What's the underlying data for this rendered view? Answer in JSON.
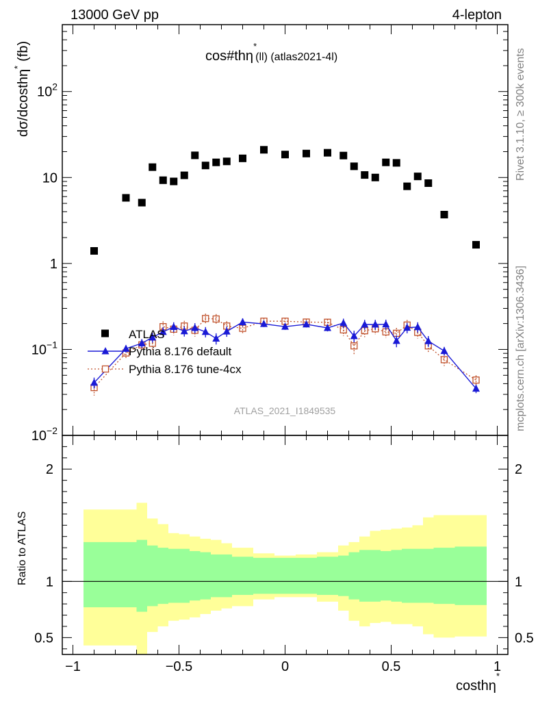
{
  "header": {
    "left": "13000 GeV pp",
    "right": "4-lepton"
  },
  "side_text": {
    "rivet": "Rivet 3.1.10, ≥ 300k events",
    "mcplots": "mcplots.cern.ch [arXiv:1306.3436]"
  },
  "chart_data": {
    "type": "scatter",
    "title": "cos#thη* (ll) (atlas2021-4l)",
    "title_main": "cos#thη",
    "title_sup": "*",
    "title_sub": "(ll) (atlas2021-4l)",
    "ylabel_main": "dσ/dcosthη",
    "ylabel_sup": "*",
    "ylabel_unit": "(fb)",
    "xlabel_main": "costhη",
    "xlabel_sup": "*",
    "ratio_ylabel": "Ratio to ATLAS",
    "watermark": "ATLAS_2021_I1849535",
    "log_y": true,
    "xlim": [
      -1.05,
      1.05
    ],
    "ylim": [
      0.01,
      600
    ],
    "ratio_ylim": [
      0.35,
      2.3
    ],
    "x_ticks": [
      {
        "v": -1,
        "label": "−1"
      },
      {
        "v": -0.5,
        "label": "−0.5"
      },
      {
        "v": 0,
        "label": "0"
      },
      {
        "v": 0.5,
        "label": "0.5"
      },
      {
        "v": 1,
        "label": "1"
      }
    ],
    "y_ticks": [
      {
        "v": 100,
        "base": "10",
        "exp": "2"
      },
      {
        "v": 10,
        "base": "10",
        "exp": ""
      },
      {
        "v": 1,
        "base": "1",
        "exp": ""
      },
      {
        "v": 0.1,
        "base": "10",
        "exp": "−1"
      },
      {
        "v": 0.01,
        "base": "10",
        "exp": "−2"
      }
    ],
    "ratio_ticks": [
      {
        "v": 2,
        "label": "2"
      },
      {
        "v": 1,
        "label": "1"
      },
      {
        "v": 0.5,
        "label": "0.5"
      }
    ],
    "legend": [
      {
        "name": "ATLAS",
        "style": "data"
      },
      {
        "name": "Pythia 8.176 default",
        "style": "line"
      },
      {
        "name": "Pythia 8.176 tune-4cx",
        "style": "dotted"
      }
    ],
    "colors": {
      "data": "#000000",
      "default": "#1a1ad6",
      "tune": "#c0502a",
      "band_outer": "#ffff99",
      "band_inner": "#99ff99"
    },
    "x": [
      -0.9,
      -0.75,
      -0.675,
      -0.625,
      -0.575,
      -0.525,
      -0.475,
      -0.425,
      -0.375,
      -0.325,
      -0.275,
      -0.2,
      -0.1,
      0.0,
      0.1,
      0.2,
      0.275,
      0.325,
      0.375,
      0.425,
      0.475,
      0.525,
      0.575,
      0.625,
      0.675,
      0.75,
      0.9
    ],
    "bins": [
      -0.95,
      -0.8,
      -0.7,
      -0.65,
      -0.6,
      -0.55,
      -0.5,
      -0.45,
      -0.4,
      -0.35,
      -0.3,
      -0.25,
      -0.15,
      -0.05,
      0.05,
      0.15,
      0.25,
      0.3,
      0.35,
      0.4,
      0.45,
      0.5,
      0.55,
      0.6,
      0.65,
      0.7,
      0.8,
      0.95
    ],
    "series": [
      {
        "name": "ATLAS",
        "values": [
          1.4,
          5.8,
          5.1,
          13.2,
          9.3,
          9.0,
          10.6,
          18.1,
          13.8,
          15.0,
          15.4,
          16.7,
          21.0,
          18.5,
          19.0,
          19.4,
          18.0,
          13.5,
          10.7,
          10.0,
          15.0,
          14.8,
          7.9,
          10.3,
          8.6,
          3.7,
          1.65
        ]
      },
      {
        "name": "Pythia 8.176 default",
        "values": [
          0.041,
          0.102,
          0.118,
          0.138,
          0.16,
          0.183,
          0.163,
          0.178,
          0.16,
          0.134,
          0.162,
          0.208,
          0.198,
          0.184,
          0.196,
          0.178,
          0.203,
          0.143,
          0.195,
          0.195,
          0.196,
          0.126,
          0.179,
          0.182,
          0.125,
          0.096,
          0.035
        ],
        "errors": [
          0.006,
          0.01,
          0.014,
          0.018,
          0.022,
          0.024,
          0.022,
          0.024,
          0.022,
          0.02,
          0.022,
          0.022,
          0.016,
          0.015,
          0.016,
          0.016,
          0.025,
          0.022,
          0.026,
          0.026,
          0.026,
          0.02,
          0.025,
          0.025,
          0.018,
          0.011,
          0.004
        ]
      },
      {
        "name": "Pythia 8.176 tune-4cx",
        "values": [
          0.036,
          0.091,
          0.113,
          0.118,
          0.184,
          0.172,
          0.187,
          0.167,
          0.229,
          0.226,
          0.187,
          0.176,
          0.213,
          0.213,
          0.208,
          0.207,
          0.169,
          0.11,
          0.165,
          0.174,
          0.16,
          0.154,
          0.192,
          0.158,
          0.11,
          0.076,
          0.044
        ],
        "errors": [
          0.007,
          0.012,
          0.016,
          0.02,
          0.028,
          0.026,
          0.028,
          0.026,
          0.032,
          0.032,
          0.026,
          0.024,
          0.018,
          0.018,
          0.018,
          0.018,
          0.026,
          0.022,
          0.026,
          0.026,
          0.024,
          0.024,
          0.028,
          0.024,
          0.02,
          0.012,
          0.006
        ]
      }
    ],
    "band_inner": [
      [
        0.77,
        1.35
      ],
      [
        0.77,
        1.35
      ],
      [
        0.73,
        1.37
      ],
      [
        0.78,
        1.32
      ],
      [
        0.8,
        1.3
      ],
      [
        0.81,
        1.29
      ],
      [
        0.81,
        1.29
      ],
      [
        0.83,
        1.27
      ],
      [
        0.84,
        1.26
      ],
      [
        0.86,
        1.24
      ],
      [
        0.86,
        1.24
      ],
      [
        0.88,
        1.22
      ],
      [
        0.89,
        1.21
      ],
      [
        0.89,
        1.21
      ],
      [
        0.89,
        1.21
      ],
      [
        0.88,
        1.22
      ],
      [
        0.87,
        1.23
      ],
      [
        0.84,
        1.26
      ],
      [
        0.82,
        1.28
      ],
      [
        0.82,
        1.28
      ],
      [
        0.83,
        1.27
      ],
      [
        0.82,
        1.28
      ],
      [
        0.81,
        1.29
      ],
      [
        0.81,
        1.29
      ],
      [
        0.81,
        1.29
      ],
      [
        0.8,
        1.3
      ],
      [
        0.79,
        1.31
      ]
    ],
    "band_outer": [
      [
        0.43,
        1.64
      ],
      [
        0.43,
        1.64
      ],
      [
        0.35,
        1.7
      ],
      [
        0.55,
        1.56
      ],
      [
        0.6,
        1.51
      ],
      [
        0.65,
        1.43
      ],
      [
        0.66,
        1.42
      ],
      [
        0.68,
        1.4
      ],
      [
        0.71,
        1.38
      ],
      [
        0.74,
        1.37
      ],
      [
        0.76,
        1.34
      ],
      [
        0.78,
        1.3
      ],
      [
        0.84,
        1.25
      ],
      [
        0.86,
        1.23
      ],
      [
        0.86,
        1.24
      ],
      [
        0.82,
        1.26
      ],
      [
        0.74,
        1.32
      ],
      [
        0.65,
        1.35
      ],
      [
        0.6,
        1.4
      ],
      [
        0.63,
        1.45
      ],
      [
        0.64,
        1.46
      ],
      [
        0.62,
        1.47
      ],
      [
        0.62,
        1.48
      ],
      [
        0.6,
        1.5
      ],
      [
        0.53,
        1.57
      ],
      [
        0.5,
        1.59
      ],
      [
        0.51,
        1.59
      ]
    ]
  }
}
